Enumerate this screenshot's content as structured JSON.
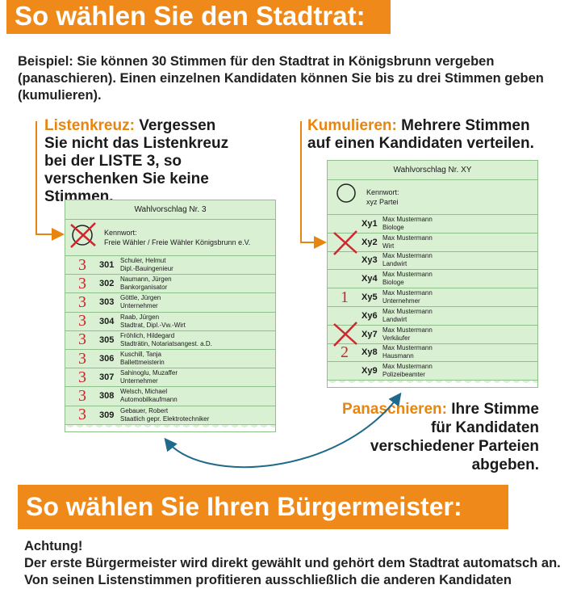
{
  "header": {
    "title": "So wählen Sie den Stadtrat:"
  },
  "intro": "Beispiel: Sie können 30 Stimmen für den Stadtrat in Königsbrunn vergeben (panaschieren). Einen einzelnen Kandidaten können Sie bis zu drei Stimmen geben (kumulieren).",
  "listenkreuz": {
    "label": "Listenkreuz:",
    "text": "Vergessen Sie nicht das Listenkreuz bei der LISTE 3, so verschenken Sie keine Stimmen."
  },
  "kumulieren": {
    "label": "Kumulieren:",
    "text": "Mehrere Stimmen auf einen Kandidaten verteilen."
  },
  "ballots": [
    {
      "title": "Wahlvorschlag Nr. 3",
      "kennwort_label": "Kennwort:",
      "kennwort": "Freie Wähler / Freie Wähler Königsbrunn e.V.",
      "rows": [
        {
          "votes": "3",
          "number": "301",
          "name": "Schuler, Helmut",
          "job": "Dipl.-Bauingenieur"
        },
        {
          "votes": "3",
          "number": "302",
          "name": "Naumann, Jürgen",
          "job": "Bankorganisator"
        },
        {
          "votes": "3",
          "number": "303",
          "name": "Göttle, Jürgen",
          "job": "Unternehmer"
        },
        {
          "votes": "3",
          "number": "304",
          "name": "Raab, Jürgen",
          "job": "Stadtrat, Dipl.-Vw.-Wirt"
        },
        {
          "votes": "3",
          "number": "305",
          "name": "Fröhlich, Hildegard",
          "job": "Stadträtin, Notariatsangest. a.D."
        },
        {
          "votes": "3",
          "number": "306",
          "name": "Kuschill, Tanja",
          "job": "Ballettmeisterin"
        },
        {
          "votes": "3",
          "number": "307",
          "name": "Sahinoglu, Muzaffer",
          "job": "Unternehmer"
        },
        {
          "votes": "3",
          "number": "308",
          "name": "Welsch, Michael",
          "job": "Automobilkaufmann"
        },
        {
          "votes": "3",
          "number": "309",
          "name": "Gebauer, Robert",
          "job": "Staatlich gepr. Elektrotechniker"
        }
      ]
    },
    {
      "title": "Wahlvorschlag Nr. XY",
      "kennwort_label": "Kennwort:",
      "kennwort": "xyz Partei",
      "rows": [
        {
          "number": "Xy1",
          "name": "Max Mustermann",
          "job": "Biologe"
        },
        {
          "number": "Xy2",
          "name": "Max Mustermann",
          "job": "Wirt"
        },
        {
          "number": "Xy3",
          "name": "Max Mustermann",
          "job": "Landwirt"
        },
        {
          "number": "Xy4",
          "name": "Max Mustermann",
          "job": "Biologe"
        },
        {
          "votes": "1",
          "number": "Xy5",
          "name": "Max Mustermann",
          "job": "Unternehmer"
        },
        {
          "number": "Xy6",
          "name": "Max Mustermann",
          "job": "Landwirt"
        },
        {
          "number": "Xy7",
          "name": "Max Mustermann",
          "job": "Verkäufer"
        },
        {
          "votes": "2",
          "number": "Xy8",
          "name": "Max Mustermann",
          "job": "Hausmann"
        },
        {
          "number": "Xy9",
          "name": "Max Mustermann",
          "job": "Polizeibeamter"
        }
      ]
    }
  ],
  "panaschieren": {
    "label": "Panaschieren:",
    "text": "Ihre Stimme für Kandidaten verschiedener Parteien abgeben."
  },
  "header2": {
    "title": "So wählen Sie Ihren Bürgermeister:"
  },
  "achtung": {
    "title": "Achtung!",
    "text": "Der erste Bürgermeister wird direkt gewählt und gehört dem Stadtrat automatsch an. Von seinen Listenstimmen profitieren ausschließlich die anderen Kandidaten"
  }
}
